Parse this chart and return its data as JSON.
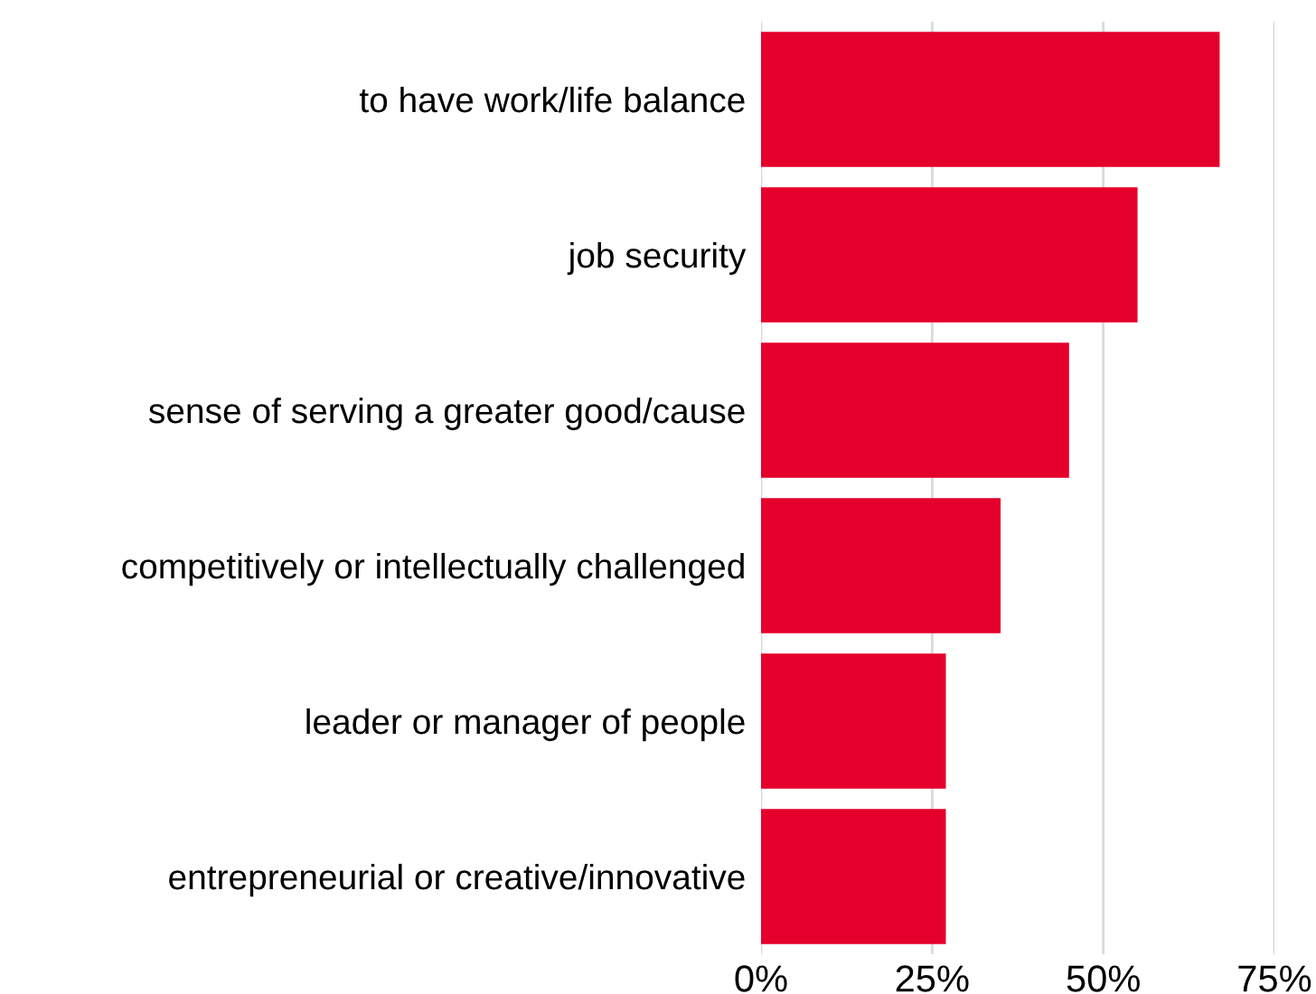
{
  "chart_data": {
    "type": "bar",
    "orientation": "horizontal",
    "categories": [
      "to have work/life balance",
      "job security",
      "sense of serving a greater good/cause",
      "competitively or intellectually challenged",
      "leader or manager of people",
      "entrepreneurial or creative/innovative"
    ],
    "values": [
      67,
      55,
      45,
      35,
      27,
      27
    ],
    "color": "#e4002b",
    "xlim": [
      0,
      75
    ],
    "xticks": [
      {
        "value": 0,
        "label": "0%"
      },
      {
        "value": 25,
        "label": "25%"
      },
      {
        "value": 50,
        "label": "50%"
      },
      {
        "value": 75,
        "label": "75%"
      }
    ],
    "grid": "x",
    "legend": false
  }
}
